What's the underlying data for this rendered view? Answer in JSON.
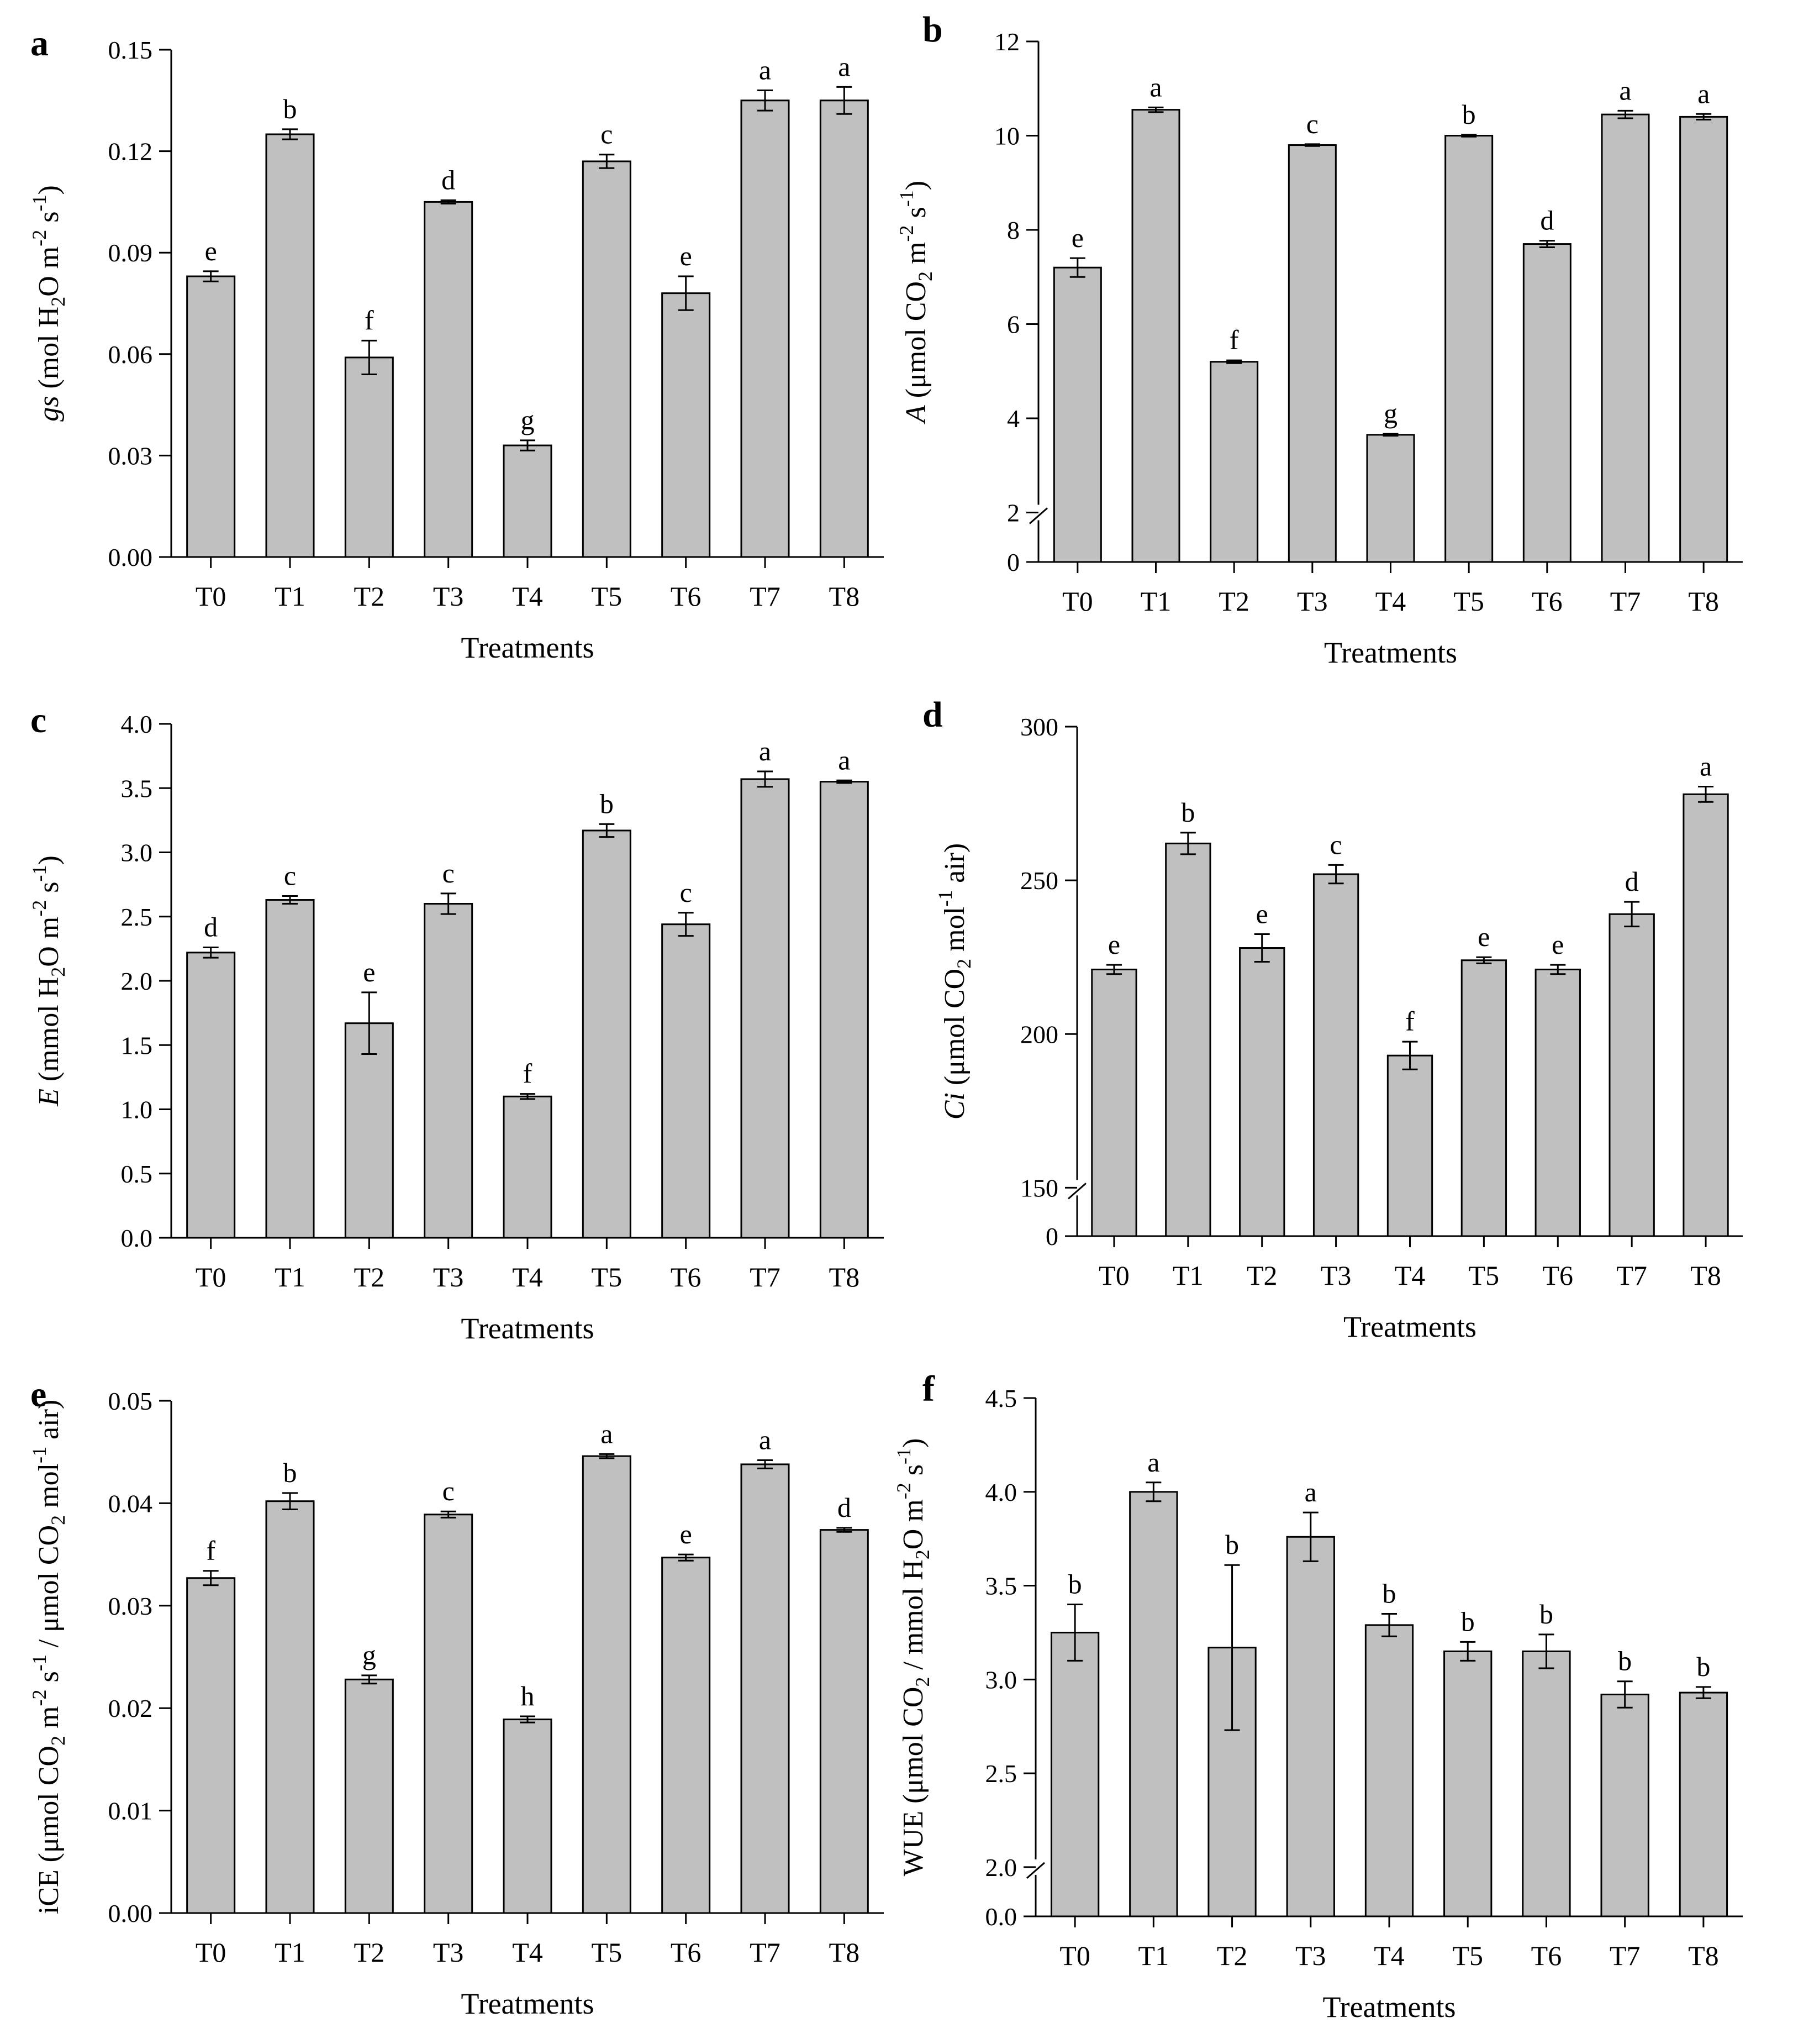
{
  "chart_data": [
    {
      "panel": "a",
      "type": "bar",
      "title": "",
      "xlabel": "Treatments",
      "ylabel_parts": [
        {
          "t": "gs",
          "i": true
        },
        {
          "t": " (mol H"
        },
        {
          "t": "2",
          "sub": true
        },
        {
          "t": "O m"
        },
        {
          "t": "-2",
          "sup": true
        },
        {
          "t": " s"
        },
        {
          "t": "-1",
          "sup": true
        },
        {
          "t": ")"
        }
      ],
      "categories": [
        "T0",
        "T1",
        "T2",
        "T3",
        "T4",
        "T5",
        "T6",
        "T7",
        "T8"
      ],
      "values": [
        0.083,
        0.125,
        0.059,
        0.105,
        0.033,
        0.117,
        0.078,
        0.135,
        0.135
      ],
      "errors": [
        0.0015,
        0.0015,
        0.005,
        0.0005,
        0.0015,
        0.002,
        0.005,
        0.003,
        0.004
      ],
      "letters": [
        "e",
        "b",
        "f",
        "d",
        "g",
        "c",
        "e",
        "a",
        "a"
      ],
      "ylim": [
        0,
        0.15
      ],
      "yticks": [
        0,
        0.03,
        0.06,
        0.09,
        0.12,
        0.15
      ],
      "ytick_labels": [
        "0.00",
        "0.03",
        "0.06",
        "0.09",
        "0.12",
        "0.15"
      ],
      "axis_break": false
    },
    {
      "panel": "b",
      "type": "bar",
      "title": "",
      "xlabel": "Treatments",
      "ylabel_parts": [
        {
          "t": "A",
          "i": true
        },
        {
          "t": " (μmol CO"
        },
        {
          "t": "2",
          "sub": true
        },
        {
          "t": " m"
        },
        {
          "t": "-2",
          "sup": true
        },
        {
          "t": " s"
        },
        {
          "t": "-1",
          "sup": true
        },
        {
          "t": ")"
        }
      ],
      "categories": [
        "T0",
        "T1",
        "T2",
        "T3",
        "T4",
        "T5",
        "T6",
        "T7",
        "T8"
      ],
      "values": [
        7.2,
        10.55,
        5.2,
        9.8,
        3.65,
        10.0,
        7.7,
        10.45,
        10.4
      ],
      "errors": [
        0.2,
        0.05,
        0.03,
        0.02,
        0.02,
        0.02,
        0.07,
        0.08,
        0.06
      ],
      "letters": [
        "e",
        "a",
        "f",
        "c",
        "g",
        "b",
        "d",
        "a",
        "a"
      ],
      "ylim": [
        0,
        12
      ],
      "yticks": [
        0,
        2,
        4,
        6,
        8,
        10,
        12
      ],
      "ytick_labels": [
        "0",
        "2",
        "4",
        "6",
        "8",
        "10",
        "12"
      ],
      "axis_break": true,
      "break_at": 2
    },
    {
      "panel": "c",
      "type": "bar",
      "title": "",
      "xlabel": "Treatments",
      "ylabel_parts": [
        {
          "t": "E",
          "i": true
        },
        {
          "t": " (mmol H"
        },
        {
          "t": "2",
          "sub": true
        },
        {
          "t": "O m"
        },
        {
          "t": "-2",
          "sup": true
        },
        {
          "t": " s"
        },
        {
          "t": "-1",
          "sup": true
        },
        {
          "t": ")"
        }
      ],
      "categories": [
        "T0",
        "T1",
        "T2",
        "T3",
        "T4",
        "T5",
        "T6",
        "T7",
        "T8"
      ],
      "values": [
        2.22,
        2.63,
        1.67,
        2.6,
        1.1,
        3.17,
        2.44,
        3.57,
        3.55
      ],
      "errors": [
        0.04,
        0.03,
        0.24,
        0.08,
        0.02,
        0.05,
        0.09,
        0.06,
        0.01
      ],
      "letters": [
        "d",
        "c",
        "e",
        "c",
        "f",
        "b",
        "c",
        "a",
        "a"
      ],
      "ylim": [
        0,
        4
      ],
      "yticks": [
        0,
        0.5,
        1,
        1.5,
        2,
        2.5,
        3,
        3.5,
        4
      ],
      "ytick_labels": [
        "0.0",
        "0.5",
        "1.0",
        "1.5",
        "2.0",
        "2.5",
        "3.0",
        "3.5",
        "4.0"
      ],
      "axis_break": false
    },
    {
      "panel": "d",
      "type": "bar",
      "title": "",
      "xlabel": "Treatments",
      "ylabel_parts": [
        {
          "t": "Ci",
          "i": true
        },
        {
          "t": " (μmol CO"
        },
        {
          "t": "2",
          "sub": true
        },
        {
          "t": " mol"
        },
        {
          "t": "-1",
          "sup": true
        },
        {
          "t": " air)"
        }
      ],
      "categories": [
        "T0",
        "T1",
        "T2",
        "T3",
        "T4",
        "T5",
        "T6",
        "T7",
        "T8"
      ],
      "values": [
        221,
        262,
        228,
        252,
        193,
        224,
        221,
        239,
        278
      ],
      "errors": [
        1.5,
        3.5,
        4.5,
        3,
        4.5,
        1,
        1.5,
        4,
        2.5
      ],
      "letters": [
        "e",
        "b",
        "e",
        "c",
        "f",
        "e",
        "e",
        "d",
        "a"
      ],
      "ylim": [
        0,
        300
      ],
      "yticks": [
        0,
        150,
        200,
        250,
        300
      ],
      "ytick_labels": [
        "0",
        "150",
        "200",
        "250",
        "300"
      ],
      "axis_break": true,
      "break_at": 150
    },
    {
      "panel": "e",
      "type": "bar",
      "title": "",
      "xlabel": "Treatments",
      "ylabel_parts": [
        {
          "t": "iCE (μmol CO"
        },
        {
          "t": "2",
          "sub": true
        },
        {
          "t": " m"
        },
        {
          "t": "-2",
          "sup": true
        },
        {
          "t": " s"
        },
        {
          "t": "-1",
          "sup": true
        },
        {
          "t": " / μmol CO"
        },
        {
          "t": "2",
          "sub": true
        },
        {
          "t": " mol"
        },
        {
          "t": "-1",
          "sup": true
        },
        {
          "t": " air)"
        }
      ],
      "categories": [
        "T0",
        "T1",
        "T2",
        "T3",
        "T4",
        "T5",
        "T6",
        "T7",
        "T8"
      ],
      "values": [
        0.0327,
        0.0402,
        0.0228,
        0.0389,
        0.0189,
        0.0446,
        0.0347,
        0.0438,
        0.0374
      ],
      "errors": [
        0.0007,
        0.0008,
        0.0004,
        0.0003,
        0.0003,
        0.0002,
        0.0003,
        0.0004,
        0.0002
      ],
      "letters": [
        "f",
        "b",
        "g",
        "c",
        "h",
        "a",
        "e",
        "a",
        "d"
      ],
      "ylim": [
        0,
        0.05
      ],
      "yticks": [
        0,
        0.01,
        0.02,
        0.03,
        0.04,
        0.05
      ],
      "ytick_labels": [
        "0.00",
        "0.01",
        "0.02",
        "0.03",
        "0.04",
        "0.05"
      ],
      "axis_break": false
    },
    {
      "panel": "f",
      "type": "bar",
      "title": "",
      "xlabel": "Treatments",
      "ylabel_parts": [
        {
          "t": "WUE (μmol CO"
        },
        {
          "t": "2",
          "sub": true
        },
        {
          "t": " / mmol H"
        },
        {
          "t": "2",
          "sub": true
        },
        {
          "t": "O m"
        },
        {
          "t": "-2",
          "sup": true
        },
        {
          "t": " s"
        },
        {
          "t": "-1",
          "sup": true
        },
        {
          "t": ")"
        }
      ],
      "categories": [
        "T0",
        "T1",
        "T2",
        "T3",
        "T4",
        "T5",
        "T6",
        "T7",
        "T8"
      ],
      "values": [
        3.25,
        4.0,
        3.17,
        3.76,
        3.29,
        3.15,
        3.15,
        2.92,
        2.93
      ],
      "errors": [
        0.15,
        0.05,
        0.44,
        0.13,
        0.06,
        0.05,
        0.09,
        0.07,
        0.03
      ],
      "letters": [
        "b",
        "a",
        "b",
        "a",
        "b",
        "b",
        "b",
        "b",
        "b"
      ],
      "ylim": [
        0,
        4.5
      ],
      "yticks": [
        0,
        2,
        2.5,
        3,
        3.5,
        4,
        4.5
      ],
      "ytick_labels": [
        "0.0",
        "2.0",
        "2.5",
        "3.0",
        "3.5",
        "4.0",
        "4.5"
      ],
      "axis_break": true,
      "break_at": 2
    }
  ]
}
